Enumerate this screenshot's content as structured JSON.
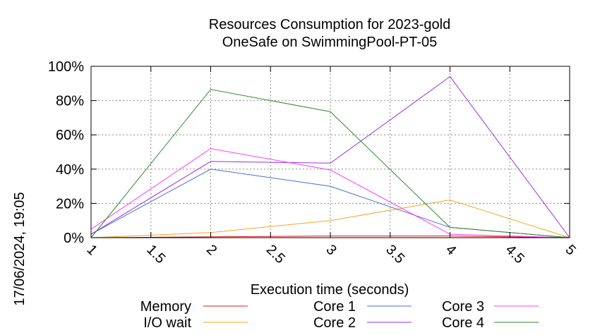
{
  "chart_data": {
    "type": "line",
    "title_lines": [
      "Resources Consumption for 2023-gold",
      "OneSafe on SwimmingPool-PT-05"
    ],
    "xlabel": "Execution time (seconds)",
    "ylabel": "",
    "timestamp": "17/06/2024, 19:05",
    "xlim": [
      1,
      5
    ],
    "ylim": [
      0,
      100
    ],
    "x_ticks": [
      1,
      1.5,
      2,
      2.5,
      3,
      3.5,
      4,
      4.5,
      5
    ],
    "x_tick_labels": [
      "1",
      "1.5",
      "2",
      "2.5",
      "3",
      "3.5",
      "4",
      "4.5",
      "5"
    ],
    "y_ticks": [
      0,
      20,
      40,
      60,
      80,
      100
    ],
    "y_tick_labels": [
      "0%",
      "20%",
      "40%",
      "60%",
      "80%",
      "100%"
    ],
    "grid": true,
    "legend_position": "bottom",
    "x": [
      1,
      2,
      3,
      4,
      5
    ],
    "series": [
      {
        "name": "Memory",
        "color": "#e41a1c",
        "values": [
          0,
          0.5,
          1,
          1,
          0
        ]
      },
      {
        "name": "I/O wait",
        "color": "#f5a623",
        "values": [
          0,
          3,
          10,
          22,
          0
        ]
      },
      {
        "name": "Core 1",
        "color": "#4a6fd4",
        "values": [
          2,
          40,
          30,
          6,
          0
        ]
      },
      {
        "name": "Core 2",
        "color": "#9b30e0",
        "values": [
          2,
          44.5,
          43.5,
          94,
          0
        ]
      },
      {
        "name": "Core 3",
        "color": "#ff3cff",
        "values": [
          5,
          52,
          39.5,
          2,
          0
        ]
      },
      {
        "name": "Core 4",
        "color": "#2e8b2e",
        "values": [
          0,
          86.5,
          73.5,
          6,
          0
        ]
      }
    ]
  }
}
